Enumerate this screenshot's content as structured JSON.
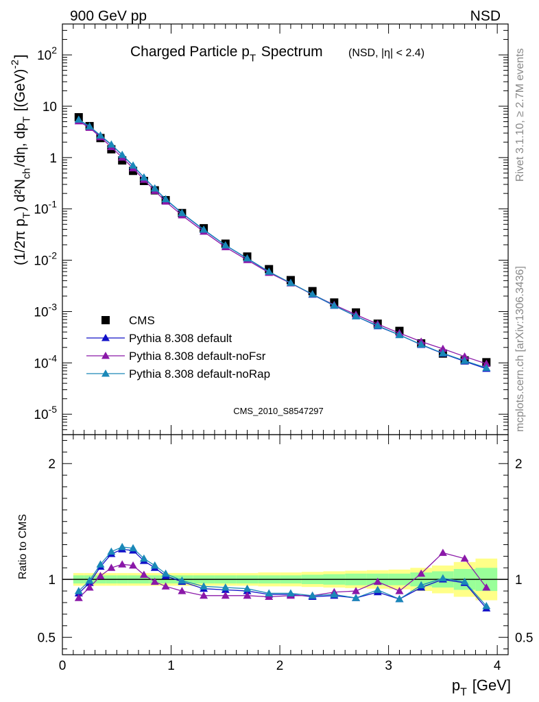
{
  "header": {
    "left": "900 GeV pp",
    "right": "NSD"
  },
  "side": {
    "rivet": "Rivet 3.1.10, ≥ 2.7M events",
    "mcplots": "mcplots.cern.ch [arXiv:1306.3436]"
  },
  "chart_data": [
    {
      "type": "line",
      "title": "Charged Particle p_T Spectrum",
      "subtitle": "(NSD, |η| < 2.4)",
      "ylabel": "(1/2π p_T) d²N_ch/dη, dp_T [(GeV)^-2]",
      "yscale": "log",
      "xlim": [
        0,
        4.1
      ],
      "ylim": [
        4e-06,
        400
      ],
      "y_tick_labels": [
        "10^-5",
        "10^-4",
        "10^-3",
        "10^-2",
        "10^-1",
        "1",
        "10",
        "10^2"
      ],
      "watermark": "CMS_2010_S8547297",
      "legend_position": "bottom-left",
      "x": [
        0.15,
        0.25,
        0.35,
        0.45,
        0.55,
        0.65,
        0.75,
        0.85,
        0.95,
        1.1,
        1.3,
        1.5,
        1.7,
        1.9,
        2.1,
        2.3,
        2.5,
        2.7,
        2.9,
        3.1,
        3.3,
        3.5,
        3.7,
        3.9
      ],
      "series": [
        {
          "name": "CMS",
          "marker": "square",
          "color": "#000000",
          "values": [
            6.1,
            4.1,
            2.4,
            1.45,
            0.88,
            0.55,
            0.35,
            0.23,
            0.148,
            0.083,
            0.042,
            0.021,
            0.0118,
            0.0067,
            0.0041,
            0.0025,
            0.0015,
            0.00096,
            0.00058,
            0.00042,
            0.00024,
            0.000152,
            0.000112,
            0.000103
          ]
        },
        {
          "name": "Pythia 8.308 default",
          "marker": "triangle",
          "color": "#1010c8",
          "values": [
            5.4,
            4.0,
            2.65,
            1.78,
            1.12,
            0.69,
            0.41,
            0.25,
            0.153,
            0.082,
            0.039,
            0.0195,
            0.0108,
            0.0059,
            0.0036,
            0.00214,
            0.0013,
            0.00081,
            0.00052,
            0.00035,
            0.000225,
            0.000152,
            0.000107,
            7.7e-05
          ]
        },
        {
          "name": "Pythia 8.308 default-noFsr",
          "marker": "triangle",
          "color": "#8a18a8",
          "values": [
            5.1,
            3.8,
            2.5,
            1.6,
            1.0,
            0.62,
            0.37,
            0.225,
            0.139,
            0.075,
            0.036,
            0.018,
            0.0101,
            0.0057,
            0.00355,
            0.00216,
            0.00135,
            0.00087,
            0.00057,
            0.00038,
            0.00026,
            0.000188,
            0.000133,
            9.6e-05
          ]
        },
        {
          "name": "Pythia 8.308 default-noRap",
          "marker": "triangle",
          "color": "#1a88b8",
          "values": [
            5.5,
            4.05,
            2.7,
            1.8,
            1.13,
            0.7,
            0.41,
            0.25,
            0.155,
            0.083,
            0.0395,
            0.0196,
            0.0109,
            0.006,
            0.0036,
            0.00218,
            0.00131,
            0.00081,
            0.00053,
            0.00035,
            0.000228,
            0.000154,
            0.00011,
            8e-05
          ]
        }
      ]
    },
    {
      "type": "line",
      "xlabel": "p_T [GeV]",
      "ylabel": "Ratio to CMS",
      "xlim": [
        0,
        4.1
      ],
      "ylim": [
        0.35,
        2.25
      ],
      "y_ticks": [
        0.5,
        1,
        2
      ],
      "x_ticks": [
        0,
        1,
        2,
        3,
        4
      ],
      "reference_line": 1,
      "band_inner_color": "#99ff99",
      "band_outer_color": "#ffff88",
      "band_x_edges": [
        0.1,
        0.2,
        0.3,
        0.4,
        0.5,
        0.6,
        0.7,
        0.8,
        0.9,
        1.0,
        1.2,
        1.4,
        1.6,
        1.8,
        2.0,
        2.2,
        2.4,
        2.6,
        2.8,
        3.0,
        3.2,
        3.4,
        3.6,
        3.8,
        4.0
      ],
      "band_inner": [
        0.035,
        0.035,
        0.035,
        0.035,
        0.035,
        0.035,
        0.035,
        0.035,
        0.035,
        0.035,
        0.035,
        0.035,
        0.035,
        0.035,
        0.035,
        0.04,
        0.045,
        0.05,
        0.05,
        0.05,
        0.06,
        0.07,
        0.09,
        0.1
      ],
      "band_outer": [
        0.055,
        0.055,
        0.055,
        0.055,
        0.055,
        0.055,
        0.055,
        0.055,
        0.055,
        0.055,
        0.055,
        0.055,
        0.055,
        0.06,
        0.06,
        0.065,
        0.07,
        0.075,
        0.08,
        0.085,
        0.1,
        0.12,
        0.15,
        0.18
      ],
      "x": [
        0.15,
        0.25,
        0.35,
        0.45,
        0.55,
        0.65,
        0.75,
        0.85,
        0.95,
        1.1,
        1.3,
        1.5,
        1.7,
        1.9,
        2.1,
        2.3,
        2.5,
        2.7,
        2.9,
        3.1,
        3.3,
        3.5,
        3.7,
        3.9
      ],
      "series": [
        {
          "name": "Pythia 8.308 default",
          "color": "#1010c8",
          "values": [
            0.88,
            0.97,
            1.11,
            1.22,
            1.26,
            1.25,
            1.16,
            1.1,
            1.03,
            0.98,
            0.92,
            0.91,
            0.9,
            0.87,
            0.87,
            0.85,
            0.86,
            0.84,
            0.89,
            0.83,
            0.93,
            1.0,
            0.97,
            0.75
          ]
        },
        {
          "name": "Pythia 8.308 default-noFsr",
          "color": "#8a18a8",
          "values": [
            0.84,
            0.93,
            1.03,
            1.1,
            1.13,
            1.12,
            1.04,
            0.98,
            0.94,
            0.9,
            0.86,
            0.86,
            0.86,
            0.85,
            0.86,
            0.86,
            0.89,
            0.9,
            0.98,
            0.9,
            1.05,
            1.23,
            1.18,
            0.93
          ]
        },
        {
          "name": "Pythia 8.308 default-noRap",
          "color": "#1a88b8",
          "values": [
            0.9,
            0.99,
            1.13,
            1.24,
            1.28,
            1.27,
            1.18,
            1.12,
            1.05,
            0.99,
            0.94,
            0.93,
            0.92,
            0.88,
            0.88,
            0.86,
            0.87,
            0.84,
            0.91,
            0.83,
            0.95,
            1.01,
            0.98,
            0.77
          ]
        }
      ]
    }
  ]
}
